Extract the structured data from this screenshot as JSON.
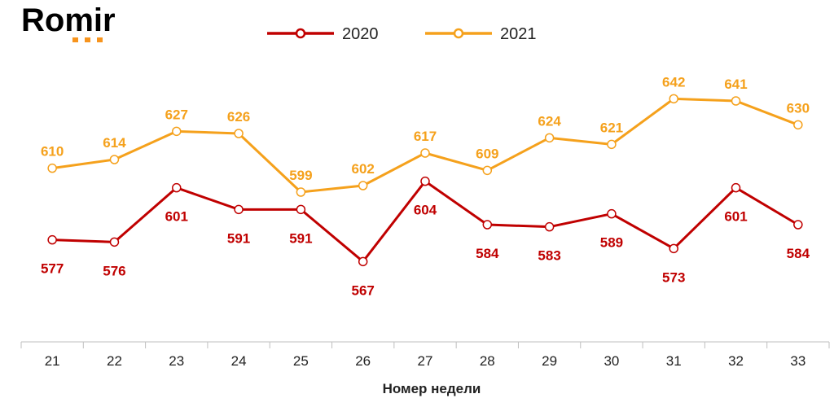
{
  "logo": {
    "text": "Romir",
    "accent_color": "#f7941d",
    "text_color": "#000000"
  },
  "chart_data": {
    "type": "line",
    "title": "",
    "xlabel": "Номер недели",
    "ylabel": "",
    "categories": [
      "21",
      "22",
      "23",
      "24",
      "25",
      "26",
      "27",
      "28",
      "29",
      "30",
      "31",
      "32",
      "33"
    ],
    "ylim": [
      530,
      665
    ],
    "grid": false,
    "legend_position": "top-center",
    "series": [
      {
        "name": "2020",
        "color": "#c00000",
        "values": [
          577,
          576,
          601,
          591,
          591,
          567,
          604,
          584,
          583,
          589,
          573,
          601,
          584
        ],
        "label_placement": [
          "below",
          "below",
          "below",
          "below",
          "below",
          "below",
          "below",
          "below",
          "below",
          "below",
          "below",
          "below",
          "below"
        ]
      },
      {
        "name": "2021",
        "color": "#f5a11c",
        "values": [
          610,
          614,
          627,
          626,
          599,
          602,
          617,
          609,
          624,
          621,
          642,
          641,
          630
        ],
        "label_placement": [
          "above",
          "above",
          "above",
          "above",
          "above",
          "above",
          "above",
          "above",
          "above",
          "above",
          "above",
          "above",
          "above"
        ]
      }
    ]
  }
}
